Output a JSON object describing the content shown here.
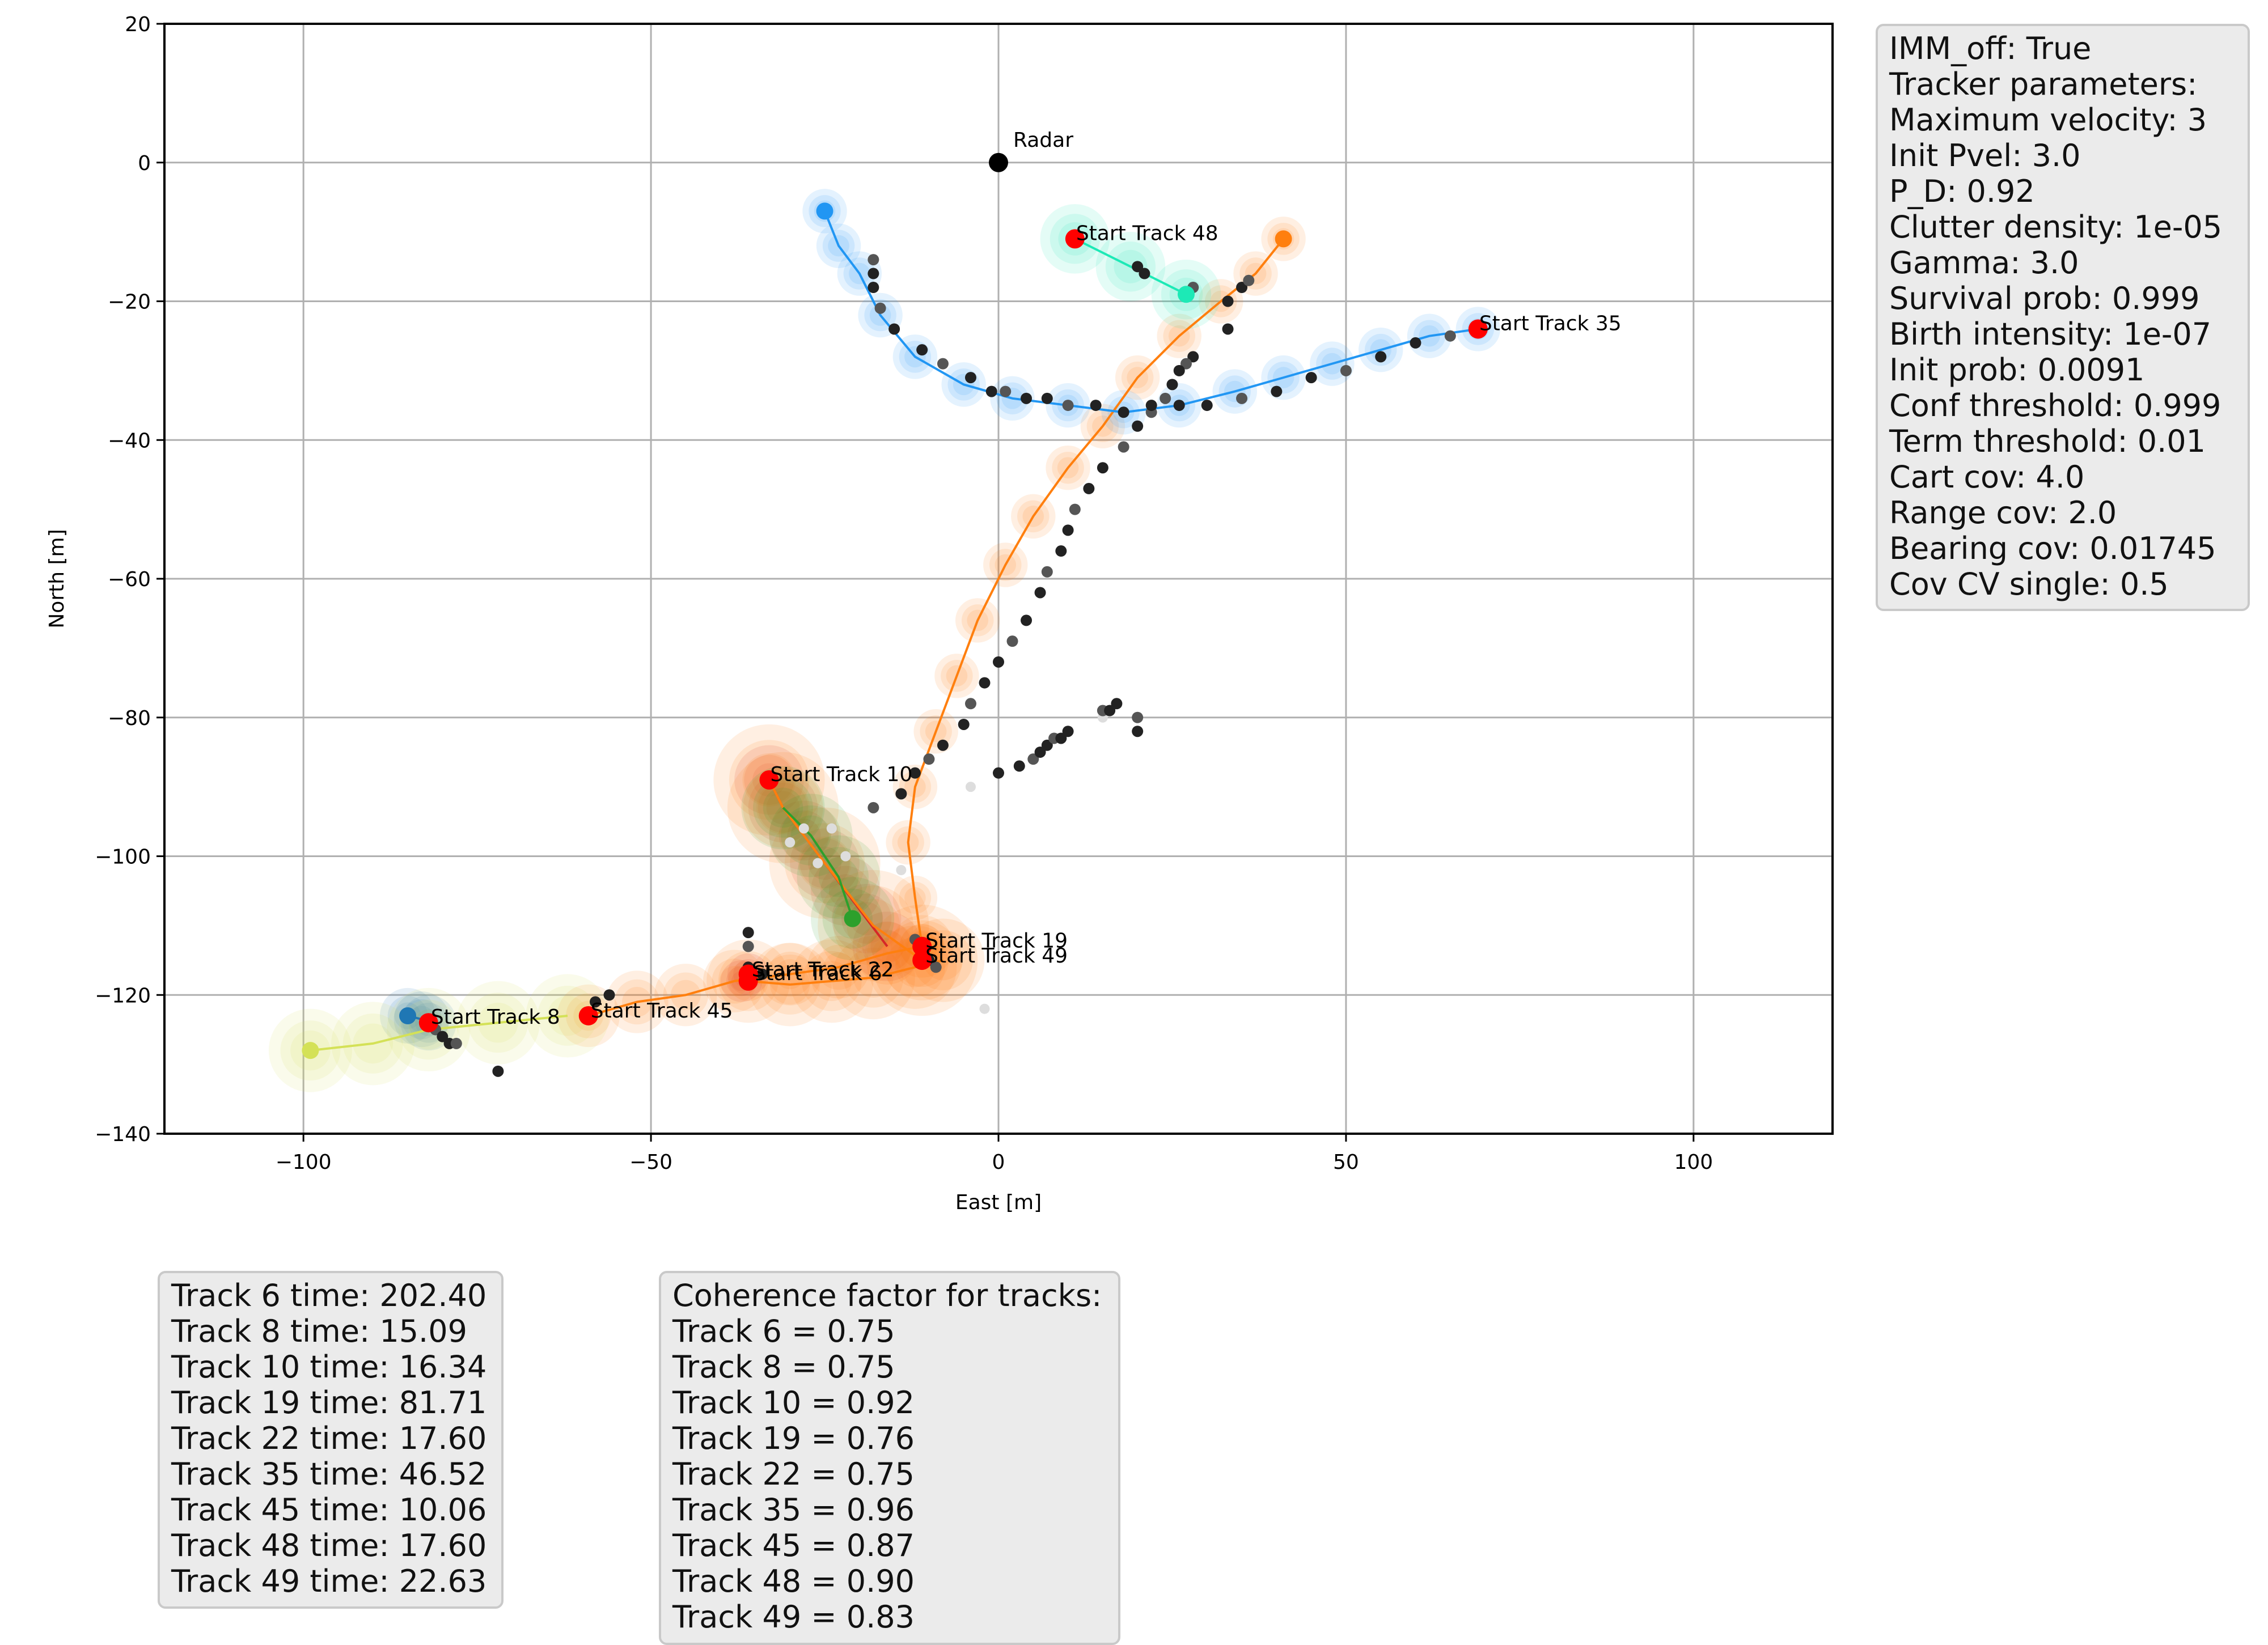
{
  "chart_data": {
    "type": "scatter",
    "xlabel": "East [m]",
    "ylabel": "North [m]",
    "xlim": [
      -120,
      120
    ],
    "ylim": [
      -140,
      20
    ],
    "xticks": [
      -100,
      -50,
      0,
      50,
      100
    ],
    "yticks": [
      20,
      0,
      -20,
      -40,
      -60,
      -80,
      -100,
      -120,
      -140
    ],
    "grid": true,
    "radar": {
      "label": "Radar",
      "x": 0,
      "y": 0
    },
    "tracks": [
      {
        "id": 6,
        "label": "Start Track 6",
        "color": "#ff7f0e",
        "points": [
          [
            -36,
            -118
          ],
          [
            -30,
            -118.5
          ],
          [
            -24,
            -118
          ],
          [
            -18,
            -117.5
          ],
          [
            -12,
            -116
          ],
          [
            -8,
            -115
          ]
        ],
        "start": [
          -36,
          -118
        ]
      },
      {
        "id": 8,
        "label": "Start Track 8",
        "color": "#1f77b4",
        "points": [
          [
            -85,
            -123
          ],
          [
            -83,
            -123.5
          ],
          [
            -82,
            -124
          ]
        ],
        "start": [
          -82,
          -124
        ]
      },
      {
        "id": 10,
        "label": "Start Track 10",
        "color": "#d62728",
        "points": [
          [
            -33,
            -89
          ],
          [
            -31,
            -93
          ],
          [
            -28,
            -97
          ],
          [
            -25,
            -101
          ],
          [
            -22,
            -105
          ],
          [
            -19,
            -109
          ],
          [
            -16,
            -113
          ]
        ],
        "start": [
          -33,
          -89
        ]
      },
      {
        "id": 19,
        "label": "Start Track 19",
        "color": "#ff7f0e",
        "points": [
          [
            -11,
            -113
          ],
          [
            -12,
            -106
          ],
          [
            -13,
            -98
          ],
          [
            -12,
            -90
          ],
          [
            -9,
            -82
          ],
          [
            -6,
            -74
          ],
          [
            -3,
            -66
          ],
          [
            1,
            -58
          ],
          [
            5,
            -51
          ],
          [
            10,
            -44
          ],
          [
            15,
            -38
          ],
          [
            20,
            -31
          ],
          [
            26,
            -25
          ],
          [
            32,
            -20
          ],
          [
            37,
            -16
          ],
          [
            41,
            -11
          ]
        ],
        "start": [
          -11,
          -113
        ]
      },
      {
        "id": 22,
        "label": "Start Track 22",
        "color": "#d62728",
        "points": [
          [
            -36,
            -117
          ],
          [
            -37,
            -118
          ]
        ],
        "start": [
          -36,
          -117
        ]
      },
      {
        "id": 35,
        "label": "Start Track 35",
        "color": "#2196f3",
        "points": [
          [
            69,
            -24
          ],
          [
            62,
            -25
          ],
          [
            55,
            -27
          ],
          [
            48,
            -29
          ],
          [
            41,
            -31
          ],
          [
            34,
            -33
          ],
          [
            26,
            -35
          ],
          [
            18,
            -36
          ],
          [
            10,
            -35
          ],
          [
            2,
            -34
          ],
          [
            -5,
            -32
          ],
          [
            -12,
            -28
          ],
          [
            -17,
            -22
          ],
          [
            -20,
            -16
          ],
          [
            -23,
            -12
          ],
          [
            -25,
            -7
          ]
        ],
        "start": [
          69,
          -24
        ]
      },
      {
        "id": 45,
        "label": "Start Track 45",
        "color": "#ff7f0e",
        "points": [
          [
            -59,
            -123
          ],
          [
            -52,
            -121
          ],
          [
            -45,
            -120
          ],
          [
            -38,
            -118
          ],
          [
            -30,
            -117
          ],
          [
            -23,
            -116
          ],
          [
            -16,
            -114
          ],
          [
            -11,
            -113
          ]
        ],
        "start": [
          -59,
          -123
        ]
      },
      {
        "id": 48,
        "label": "Start Track 48",
        "color": "#1de9b6",
        "points": [
          [
            11,
            -11
          ],
          [
            19,
            -15
          ],
          [
            27,
            -19
          ]
        ],
        "start": [
          11,
          -11
        ]
      },
      {
        "id": 49,
        "label": "Start Track 49",
        "color": "#ff7f0e",
        "points": [
          [
            -11,
            -115
          ],
          [
            -18,
            -110
          ],
          [
            -25,
            -101
          ],
          [
            -31,
            -93
          ],
          [
            -33,
            -89
          ]
        ],
        "start": [
          -11,
          -115
        ]
      }
    ],
    "extra_tracks": [
      {
        "color": "#d4e157",
        "points": [
          [
            -99,
            -128
          ],
          [
            -90,
            -127
          ],
          [
            -82,
            -125
          ],
          [
            -72,
            -124
          ],
          [
            -62,
            -123
          ]
        ]
      },
      {
        "color": "#2ca02c",
        "points": [
          [
            -21,
            -109
          ],
          [
            -23,
            -103
          ],
          [
            -27,
            -97
          ],
          [
            -31,
            -93
          ]
        ]
      }
    ],
    "measurements": [
      [
        -18,
        -14
      ],
      [
        -18,
        -16
      ],
      [
        -18,
        -18
      ],
      [
        -17,
        -21
      ],
      [
        -15,
        -24
      ],
      [
        -11,
        -27
      ],
      [
        -8,
        -29
      ],
      [
        -4,
        -31
      ],
      [
        -1,
        -33
      ],
      [
        1,
        -33
      ],
      [
        4,
        -34
      ],
      [
        7,
        -34
      ],
      [
        10,
        -35
      ],
      [
        14,
        -35
      ],
      [
        18,
        -36
      ],
      [
        22,
        -36
      ],
      [
        26,
        -35
      ],
      [
        30,
        -35
      ],
      [
        35,
        -34
      ],
      [
        40,
        -33
      ],
      [
        45,
        -31
      ],
      [
        50,
        -30
      ],
      [
        55,
        -28
      ],
      [
        60,
        -26
      ],
      [
        65,
        -25
      ],
      [
        20,
        -15
      ],
      [
        21,
        -16
      ],
      [
        28,
        -18
      ],
      [
        33,
        -20
      ],
      [
        35,
        -18
      ],
      [
        36,
        -17
      ],
      [
        33,
        -24
      ],
      [
        28,
        -28
      ],
      [
        27,
        -29
      ],
      [
        26,
        -30
      ],
      [
        25,
        -32
      ],
      [
        24,
        -34
      ],
      [
        22,
        -35
      ],
      [
        20,
        -38
      ],
      [
        18,
        -41
      ],
      [
        15,
        -44
      ],
      [
        13,
        -47
      ],
      [
        11,
        -50
      ],
      [
        10,
        -53
      ],
      [
        9,
        -56
      ],
      [
        7,
        -59
      ],
      [
        6,
        -62
      ],
      [
        4,
        -66
      ],
      [
        2,
        -69
      ],
      [
        0,
        -72
      ],
      [
        -2,
        -75
      ],
      [
        -4,
        -78
      ],
      [
        -5,
        -81
      ],
      [
        -8,
        -84
      ],
      [
        -10,
        -86
      ],
      [
        -12,
        -88
      ],
      [
        -14,
        -91
      ],
      [
        -18,
        -93
      ],
      [
        0,
        -88
      ],
      [
        3,
        -87
      ],
      [
        5,
        -86
      ],
      [
        6,
        -85
      ],
      [
        7,
        -84
      ],
      [
        8,
        -83
      ],
      [
        9,
        -83
      ],
      [
        10,
        -82
      ],
      [
        15,
        -79
      ],
      [
        16,
        -79
      ],
      [
        17,
        -78
      ],
      [
        20,
        -80
      ],
      [
        20,
        -82
      ],
      [
        -36,
        -111
      ],
      [
        -36,
        -113
      ],
      [
        -36,
        -116
      ],
      [
        -34,
        -117
      ],
      [
        -12,
        -112
      ],
      [
        -11,
        -114
      ],
      [
        -10,
        -115
      ],
      [
        -9,
        -116
      ],
      [
        -56,
        -120
      ],
      [
        -58,
        -121
      ],
      [
        -81,
        -125
      ],
      [
        -80,
        -126
      ],
      [
        -79,
        -127
      ],
      [
        -78,
        -127
      ],
      [
        -72,
        -131
      ]
    ],
    "faded_measurements": [
      [
        -4,
        -90
      ],
      [
        -14,
        -102
      ],
      [
        -22,
        -100
      ],
      [
        -26,
        -101
      ],
      [
        -30,
        -98
      ],
      [
        -28,
        -96
      ],
      [
        -24,
        -96
      ],
      [
        15,
        -80
      ],
      [
        -2,
        -122
      ]
    ],
    "track_heads": [
      {
        "color": "#2196f3",
        "point": [
          -25,
          -7
        ]
      },
      {
        "color": "#ff7f0e",
        "point": [
          41,
          -11
        ]
      },
      {
        "color": "#1de9b6",
        "point": [
          27,
          -19
        ]
      },
      {
        "color": "#2ca02c",
        "point": [
          -21,
          -109
        ]
      },
      {
        "color": "#1f77b4",
        "point": [
          -85,
          -123
        ]
      },
      {
        "color": "#d4e157",
        "point": [
          -99,
          -128
        ]
      }
    ]
  },
  "params": {
    "lines": [
      "IMM_off: True",
      "Tracker parameters:",
      "Maximum velocity: 3",
      "Init Pvel: 3.0",
      "P_D: 0.92",
      "Clutter density: 1e-05",
      "Gamma: 3.0",
      "Survival prob: 0.999",
      "Birth intensity: 1e-07",
      "Init prob: 0.0091",
      "Conf threshold: 0.999",
      "Term threshold: 0.01",
      "Cart cov: 4.0",
      "Range cov: 2.0",
      "Bearing cov: 0.01745",
      "Cov CV single: 0.5"
    ]
  },
  "times": {
    "lines": [
      "Track 6 time: 202.40",
      "Track 8 time: 15.09",
      "Track 10 time: 16.34",
      "Track 19 time: 81.71",
      "Track 22 time: 17.60",
      "Track 35 time: 46.52",
      "Track 45 time: 10.06",
      "Track 48 time: 17.60",
      "Track 49 time: 22.63"
    ]
  },
  "coherence": {
    "lines": [
      "Coherence factor for tracks:",
      "Track 6 = 0.75",
      "Track 8 = 0.75",
      "Track 10 = 0.92",
      "Track 19 = 0.76",
      "Track 22 = 0.75",
      "Track 35 = 0.96",
      "Track 45 = 0.87",
      "Track 48 = 0.90",
      "Track 49 = 0.83"
    ]
  }
}
